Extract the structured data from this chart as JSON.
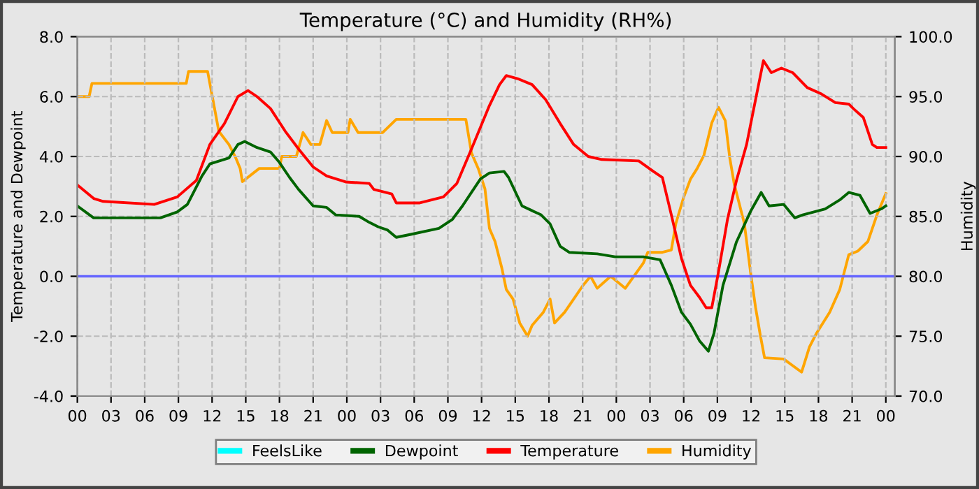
{
  "chart_data": {
    "type": "line",
    "title": "Temperature (°C) and Humidity (RH%)",
    "ylabel": "Temperature and Dewpoint",
    "y2label": "Humidity",
    "xlim": [
      0,
      72.8
    ],
    "ylim": [
      -4,
      8
    ],
    "y2lim": [
      70,
      100
    ],
    "xticks": [
      {
        "value": 0,
        "label": "00"
      },
      {
        "value": 3,
        "label": "03"
      },
      {
        "value": 6,
        "label": "06"
      },
      {
        "value": 9,
        "label": "09"
      },
      {
        "value": 12,
        "label": "12"
      },
      {
        "value": 15,
        "label": "15"
      },
      {
        "value": 18,
        "label": "18"
      },
      {
        "value": 21,
        "label": "21"
      },
      {
        "value": 24,
        "label": "00"
      },
      {
        "value": 27,
        "label": "03"
      },
      {
        "value": 30,
        "label": "06"
      },
      {
        "value": 33,
        "label": "09"
      },
      {
        "value": 36,
        "label": "12"
      },
      {
        "value": 39,
        "label": "15"
      },
      {
        "value": 42,
        "label": "18"
      },
      {
        "value": 45,
        "label": "21"
      },
      {
        "value": 48,
        "label": "00"
      },
      {
        "value": 51,
        "label": "03"
      },
      {
        "value": 54,
        "label": "06"
      },
      {
        "value": 57,
        "label": "09"
      },
      {
        "value": 60,
        "label": "12"
      },
      {
        "value": 63,
        "label": "15"
      },
      {
        "value": 66,
        "label": "18"
      },
      {
        "value": 69,
        "label": "21"
      },
      {
        "value": 72,
        "label": "00"
      }
    ],
    "yticks": [
      {
        "value": -4,
        "label": "-4.0"
      },
      {
        "value": -2,
        "label": "-2.0"
      },
      {
        "value": 0,
        "label": "0.0"
      },
      {
        "value": 2,
        "label": "2.0"
      },
      {
        "value": 4,
        "label": "4.0"
      },
      {
        "value": 6,
        "label": "6.0"
      },
      {
        "value": 8,
        "label": "8.0"
      }
    ],
    "y2ticks": [
      {
        "value": 70,
        "label": "70.0"
      },
      {
        "value": 75,
        "label": "75.0"
      },
      {
        "value": 80,
        "label": "80.0"
      },
      {
        "value": 85,
        "label": "85.0"
      },
      {
        "value": 90,
        "label": "90.0"
      },
      {
        "value": 95,
        "label": "95.0"
      },
      {
        "value": 100,
        "label": "100.0"
      }
    ],
    "grid": true,
    "legend": "bottom",
    "ref_lines": [
      {
        "axis": "y",
        "value": 0,
        "color": "#6666ff"
      }
    ],
    "series": [
      {
        "name": "FeelsLike",
        "color": "#00ffff"
      },
      {
        "name": "Dewpoint",
        "color": "#006400",
        "x": [
          0,
          1.45,
          7.4,
          8.9,
          9.8,
          11.1,
          11.8,
          13.5,
          14.3,
          14.9,
          16.0,
          17.2,
          18.0,
          18.9,
          19.7,
          21.0,
          22.2,
          23.0,
          25.1,
          26.0,
          26.8,
          27.6,
          28.4,
          29.7,
          32.2,
          33.4,
          34.3,
          35.1,
          35.9,
          36.7,
          38.0,
          38.4,
          39.6,
          41.3,
          42.1,
          43.0,
          43.8,
          46.3,
          47.9,
          50.4,
          51.9,
          52.9,
          53.8,
          54.6,
          55.4,
          56.2,
          56.7,
          57.5,
          58.7,
          60.0,
          60.9,
          61.6,
          62.9,
          63.9,
          64.6,
          66.6,
          67.9,
          68.7,
          69.7,
          70.6,
          71.6,
          72.0
        ],
        "values": [
          2.35,
          1.95,
          1.95,
          2.15,
          2.4,
          3.35,
          3.75,
          3.95,
          4.4,
          4.5,
          4.3,
          4.15,
          3.8,
          3.3,
          2.9,
          2.35,
          2.3,
          2.05,
          2.0,
          1.8,
          1.65,
          1.55,
          1.3,
          1.4,
          1.6,
          1.9,
          2.35,
          2.8,
          3.25,
          3.45,
          3.5,
          3.3,
          2.35,
          2.05,
          1.75,
          1.0,
          0.8,
          0.75,
          0.65,
          0.65,
          0.55,
          -0.3,
          -1.2,
          -1.6,
          -2.15,
          -2.5,
          -1.9,
          -0.3,
          1.15,
          2.2,
          2.8,
          2.35,
          2.4,
          1.95,
          2.05,
          2.25,
          2.55,
          2.8,
          2.7,
          2.1,
          2.25,
          2.35
        ]
      },
      {
        "name": "Temperature",
        "color": "#ff0000",
        "x": [
          0,
          1.45,
          2.3,
          6.85,
          8.9,
          10.6,
          11.8,
          13.1,
          14.3,
          15.2,
          16.0,
          17.2,
          18.5,
          19.7,
          21.0,
          22.2,
          23.9,
          26.0,
          26.4,
          28.0,
          28.4,
          30.5,
          32.6,
          33.8,
          35.1,
          36.7,
          37.6,
          38.2,
          39.2,
          40.5,
          41.7,
          43.0,
          44.2,
          45.5,
          46.7,
          50.0,
          51.3,
          52.1,
          52.9,
          53.8,
          54.6,
          55.4,
          56.0,
          56.5,
          57.1,
          57.9,
          58.7,
          59.6,
          60.4,
          61.1,
          61.8,
          62.7,
          63.7,
          65.0,
          66.2,
          67.5,
          68.7,
          69.1,
          70.0,
          70.8,
          71.2,
          72.0
        ],
        "values": [
          3.05,
          2.6,
          2.5,
          2.4,
          2.65,
          3.2,
          4.4,
          5.1,
          6.0,
          6.2,
          6.0,
          5.6,
          4.85,
          4.25,
          3.65,
          3.35,
          3.15,
          3.1,
          2.9,
          2.75,
          2.45,
          2.45,
          2.65,
          3.1,
          4.25,
          5.7,
          6.4,
          6.7,
          6.6,
          6.4,
          5.9,
          5.1,
          4.4,
          4.0,
          3.9,
          3.85,
          3.5,
          3.3,
          2.05,
          0.6,
          -0.3,
          -0.7,
          -1.05,
          -1.05,
          0.15,
          1.9,
          3.2,
          4.4,
          5.9,
          7.2,
          6.8,
          6.95,
          6.8,
          6.3,
          6.1,
          5.8,
          5.75,
          5.6,
          5.3,
          4.4,
          4.3,
          4.3
        ]
      },
      {
        "name": "Humidity",
        "color": "#ffa500",
        "axis": "y2",
        "x": [
          0,
          1.05,
          1.3,
          1.7,
          9.7,
          9.9,
          11.6,
          12.2,
          12.6,
          13.5,
          14.1,
          14.5,
          14.7,
          16.2,
          18.0,
          18.2,
          19.5,
          20.1,
          20.8,
          21.6,
          22.2,
          22.7,
          24.1,
          24.3,
          25.0,
          27.2,
          28.4,
          34.6,
          35.1,
          35.7,
          36.3,
          36.7,
          37.2,
          37.8,
          38.2,
          38.8,
          39.4,
          40.1,
          40.5,
          41.5,
          42.1,
          42.5,
          43.4,
          44.2,
          45.0,
          45.7,
          46.3,
          47.5,
          48.8,
          50.4,
          50.8,
          52.1,
          52.9,
          53.3,
          54.0,
          54.6,
          55.2,
          55.8,
          56.5,
          57.1,
          57.7,
          58.1,
          58.5,
          59.4,
          60.0,
          60.4,
          60.8,
          61.2,
          62.9,
          64.5,
          65.2,
          65.8,
          67.0,
          67.9,
          68.7,
          69.5,
          70.4,
          71.2,
          72.0
        ],
        "values": [
          95.0,
          95.0,
          96.1,
          96.1,
          96.1,
          97.1,
          97.1,
          94.1,
          92.1,
          91.0,
          89.9,
          89.0,
          87.9,
          89.0,
          89.0,
          90.0,
          90.0,
          92.0,
          91.0,
          91.0,
          93.0,
          92.0,
          92.0,
          93.1,
          92.0,
          92.0,
          93.1,
          93.1,
          90.3,
          89.0,
          87.3,
          84.0,
          82.9,
          80.7,
          78.9,
          78.1,
          76.1,
          75.0,
          75.9,
          77.0,
          78.1,
          76.1,
          77.0,
          78.1,
          79.2,
          80.0,
          79.0,
          80.0,
          79.0,
          81.1,
          82.0,
          82.0,
          82.2,
          84.4,
          86.6,
          88.1,
          89.0,
          90.1,
          92.8,
          94.1,
          93.0,
          89.9,
          87.7,
          84.4,
          80.0,
          77.4,
          75.2,
          73.2,
          73.1,
          72.0,
          74.1,
          75.2,
          77.0,
          78.9,
          81.8,
          82.1,
          82.9,
          85.1,
          86.9
        ]
      }
    ]
  }
}
